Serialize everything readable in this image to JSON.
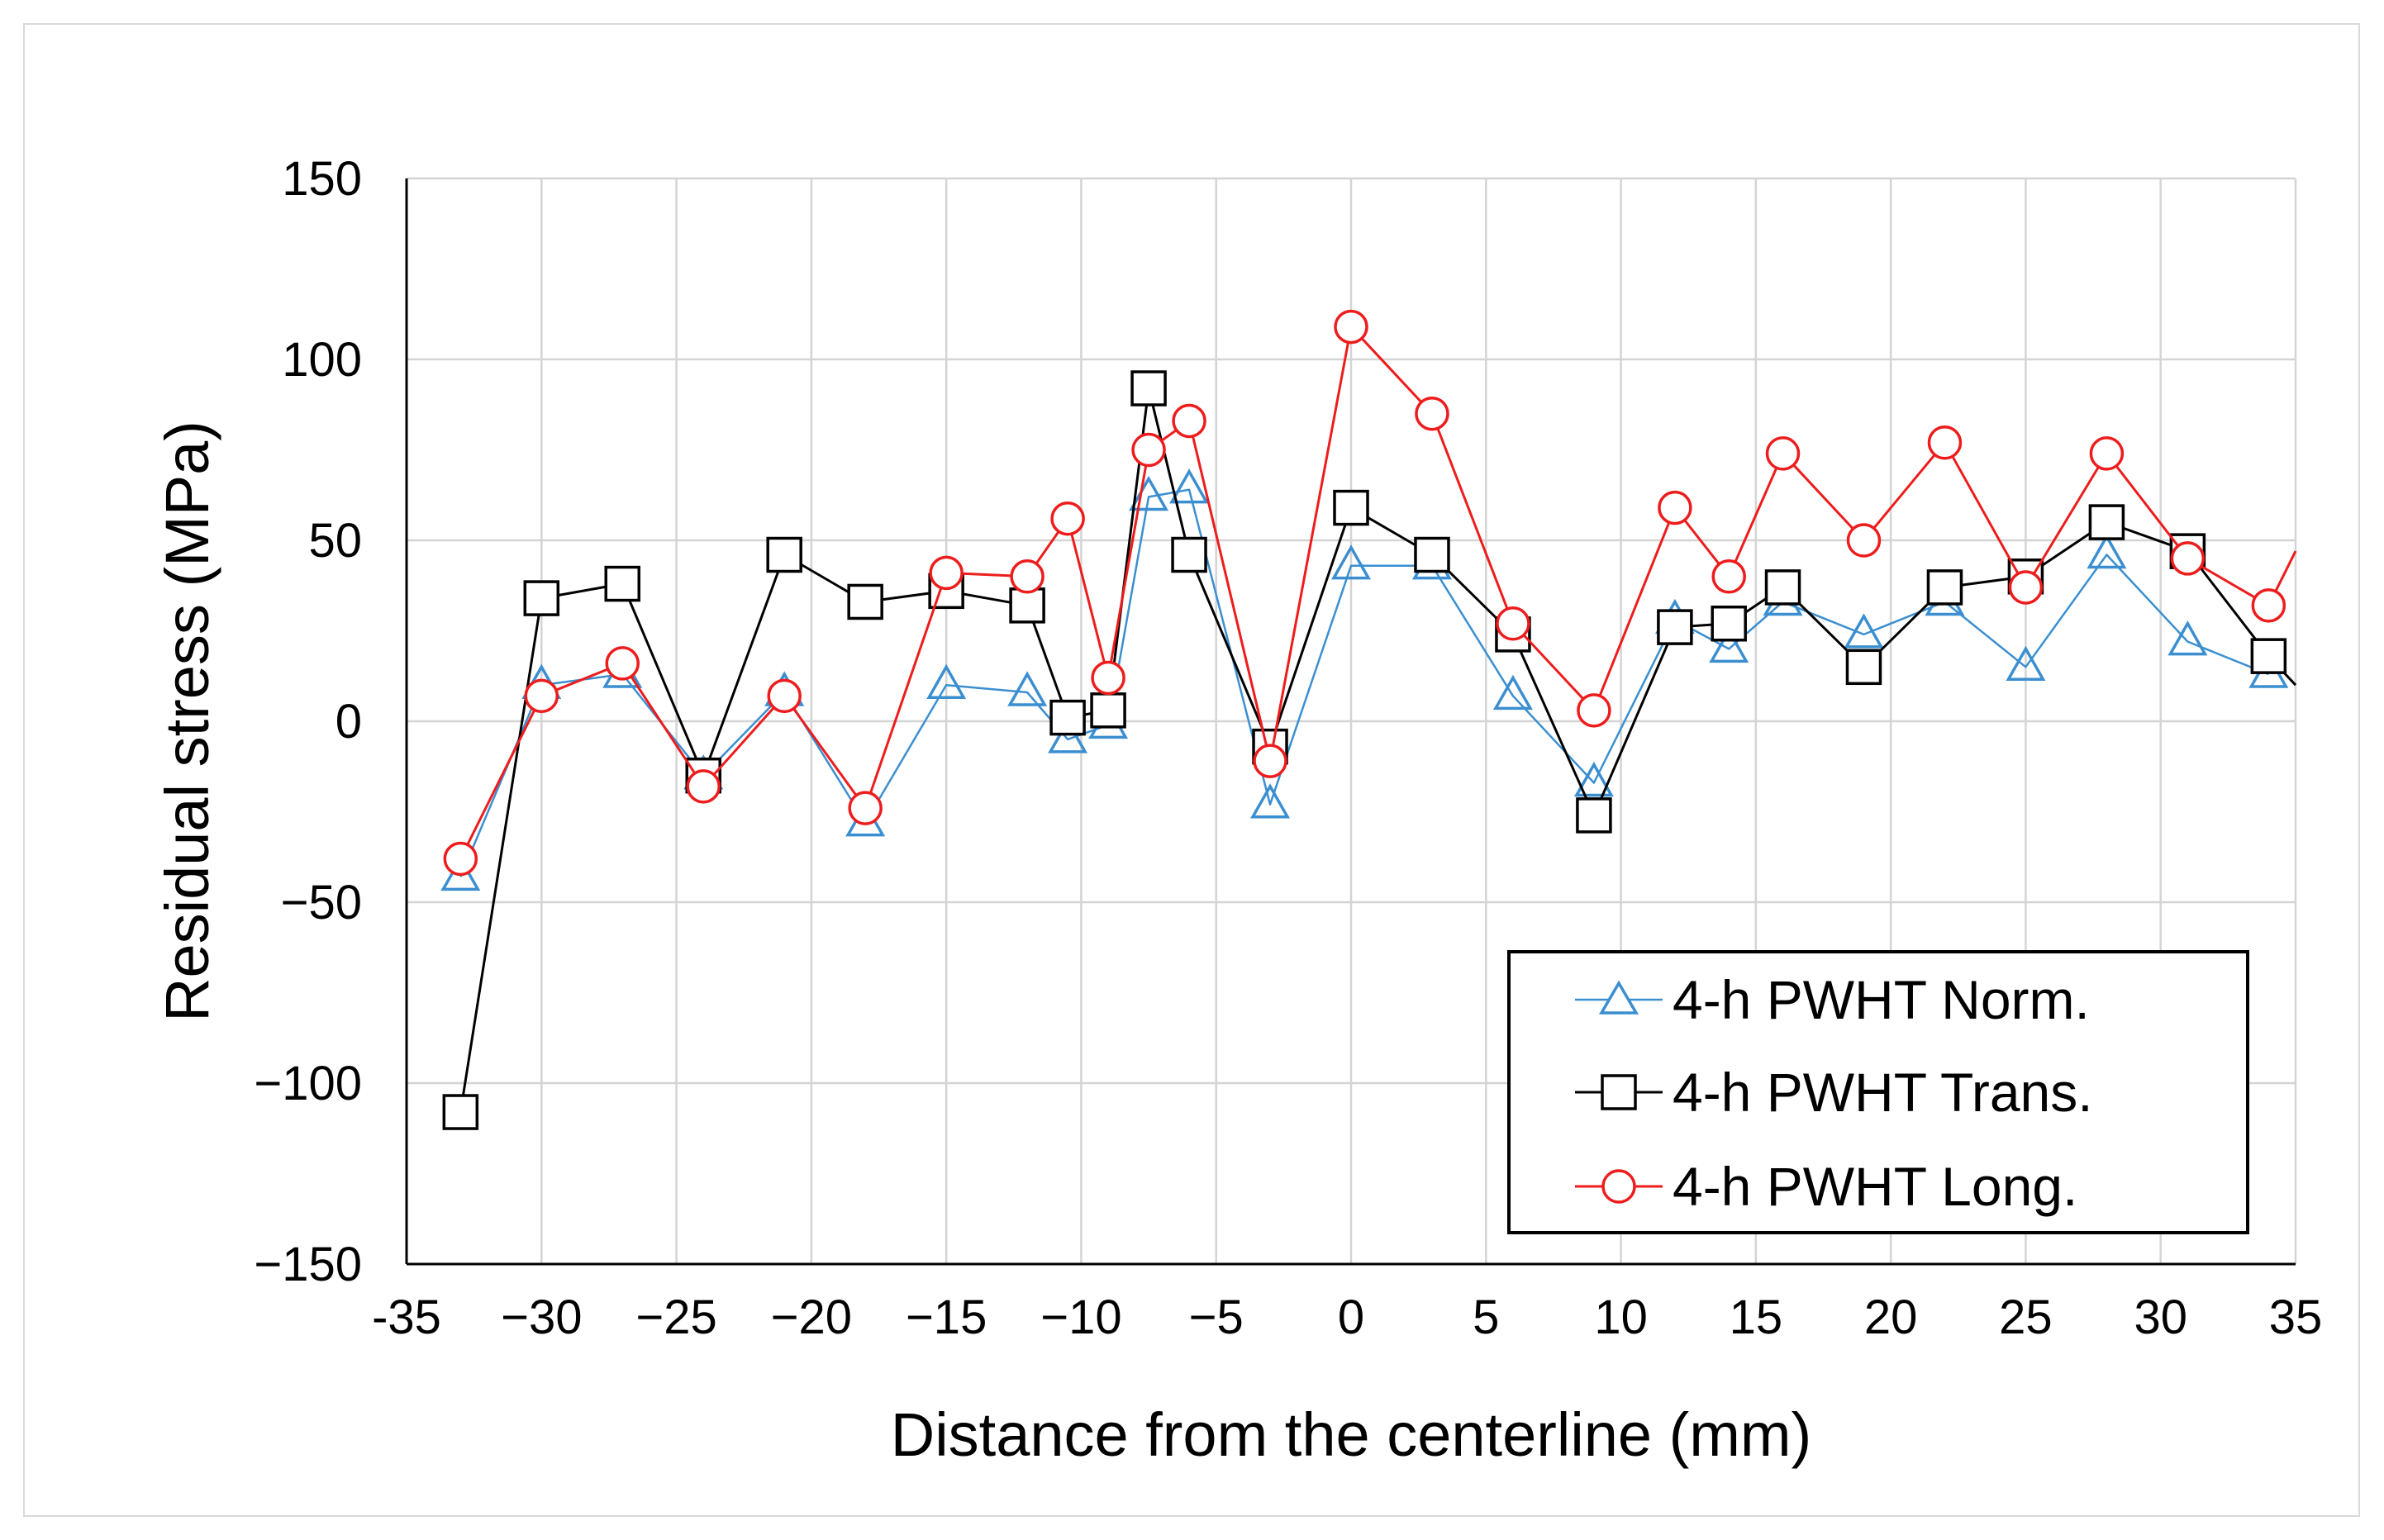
{
  "chart_data": {
    "type": "line",
    "title": "",
    "xlabel": "Distance from the centerline (mm)",
    "ylabel": "Residual stress (MPa)",
    "xlim": [
      -35,
      35
    ],
    "ylim": [
      -150,
      150
    ],
    "x_ticks": [
      -35,
      -30,
      -25,
      -20,
      -15,
      -10,
      -5,
      0,
      5,
      10,
      15,
      20,
      25,
      30,
      35
    ],
    "x_tick_labels": [
      "-35",
      "−30",
      "−25",
      "−20",
      "−15",
      "−10",
      "−5",
      "0",
      "5",
      "10",
      "15",
      "20",
      "25",
      "30",
      "35"
    ],
    "y_ticks": [
      -150,
      -100,
      -50,
      0,
      50,
      100,
      150
    ],
    "y_tick_labels": [
      "−150",
      "−100",
      "−50",
      "0",
      "50",
      "100",
      "150"
    ],
    "grid": true,
    "legend_position": "bottom-right",
    "series": [
      {
        "name": "4-h PWHT Norm.",
        "marker": "triangle",
        "color": "#3b8fd0",
        "points": [
          [
            -33,
            -43
          ],
          [
            -30,
            10
          ],
          [
            -27,
            13
          ],
          [
            -24,
            -15
          ],
          [
            -21,
            8
          ],
          [
            -18,
            -28
          ],
          [
            -15,
            10
          ],
          [
            -12,
            8
          ],
          [
            -10.5,
            -5
          ],
          [
            -9,
            -1
          ],
          [
            -7.5,
            62
          ],
          [
            -6,
            64
          ],
          [
            -3,
            -23
          ],
          [
            0,
            43
          ],
          [
            3,
            43
          ],
          [
            6,
            7
          ],
          [
            9,
            -17
          ],
          [
            12,
            28
          ],
          [
            14,
            20
          ],
          [
            16,
            33
          ],
          [
            19,
            24
          ],
          [
            22,
            33
          ],
          [
            25,
            15
          ],
          [
            28,
            46
          ],
          [
            31,
            22
          ],
          [
            34,
            13
          ]
        ]
      },
      {
        "name": "4-h PWHT Trans.",
        "marker": "square",
        "color": "#000000",
        "points": [
          [
            -33,
            -108
          ],
          [
            -30,
            34
          ],
          [
            -27,
            38
          ],
          [
            -24,
            -15
          ],
          [
            -21,
            46
          ],
          [
            -18,
            33
          ],
          [
            -15,
            36
          ],
          [
            -12,
            32
          ],
          [
            -10.5,
            1
          ],
          [
            -9,
            3
          ],
          [
            -7.5,
            92
          ],
          [
            -6,
            46
          ],
          [
            -3,
            -7
          ],
          [
            0,
            59
          ],
          [
            3,
            46
          ],
          [
            6,
            24
          ],
          [
            9,
            -26
          ],
          [
            12,
            26
          ],
          [
            14,
            27
          ],
          [
            16,
            37
          ],
          [
            19,
            15
          ],
          [
            22,
            37
          ],
          [
            25,
            40
          ],
          [
            28,
            55
          ],
          [
            31,
            47
          ],
          [
            34,
            18
          ],
          [
            35,
            10
          ]
        ]
      },
      {
        "name": "4-h PWHT Long.",
        "marker": "circle",
        "color": "#ee1c1c",
        "points": [
          [
            -33,
            -38
          ],
          [
            -30,
            7
          ],
          [
            -27,
            16
          ],
          [
            -24,
            -18
          ],
          [
            -21,
            7
          ],
          [
            -18,
            -24
          ],
          [
            -15,
            41
          ],
          [
            -12,
            40
          ],
          [
            -10.5,
            56
          ],
          [
            -9,
            12
          ],
          [
            -7.5,
            75
          ],
          [
            -6,
            83
          ],
          [
            -3,
            -11
          ],
          [
            0,
            109
          ],
          [
            3,
            85
          ],
          [
            6,
            27
          ],
          [
            9,
            3
          ],
          [
            12,
            59
          ],
          [
            14,
            40
          ],
          [
            16,
            74
          ],
          [
            19,
            50
          ],
          [
            22,
            77
          ],
          [
            25,
            37
          ],
          [
            28,
            74
          ],
          [
            31,
            45
          ],
          [
            34,
            32
          ],
          [
            35,
            47
          ]
        ]
      }
    ]
  }
}
